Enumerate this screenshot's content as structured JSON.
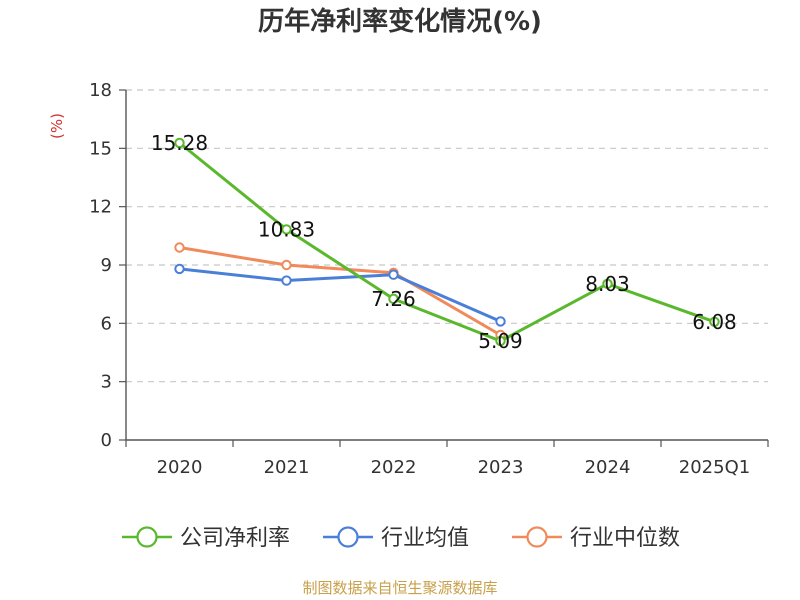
{
  "title": "历年净利率变化情况(%)",
  "source": "制图数据来自恒生聚源数据库",
  "chart_data": {
    "type": "line",
    "title": "历年净利率变化情况(%)",
    "ylabel": "(%)",
    "xlabel": "",
    "ylim": [
      0,
      18
    ],
    "yticks": [
      0,
      3,
      6,
      9,
      12,
      15,
      18
    ],
    "categories": [
      "2020",
      "2021",
      "2022",
      "2023",
      "2024",
      "2025Q1"
    ],
    "grid": true,
    "legend_position": "bottom",
    "series": [
      {
        "name": "公司净利率",
        "color": "#5ab82c",
        "values": [
          15.28,
          10.83,
          7.26,
          5.09,
          8.03,
          6.08
        ],
        "labels": [
          "15.28",
          "10.83",
          "7.26",
          "5.09",
          "8.03",
          "6.08"
        ]
      },
      {
        "name": "行业均值",
        "color": "#4a7fd8",
        "values": [
          8.8,
          8.2,
          8.5,
          6.1,
          null,
          null
        ]
      },
      {
        "name": "行业中位数",
        "color": "#f08a5a",
        "values": [
          9.9,
          9.0,
          8.6,
          5.4,
          null,
          null
        ]
      }
    ]
  },
  "colors": {
    "axis": "#555555",
    "grid": "#c8c8c8",
    "unit": "#d23232"
  }
}
